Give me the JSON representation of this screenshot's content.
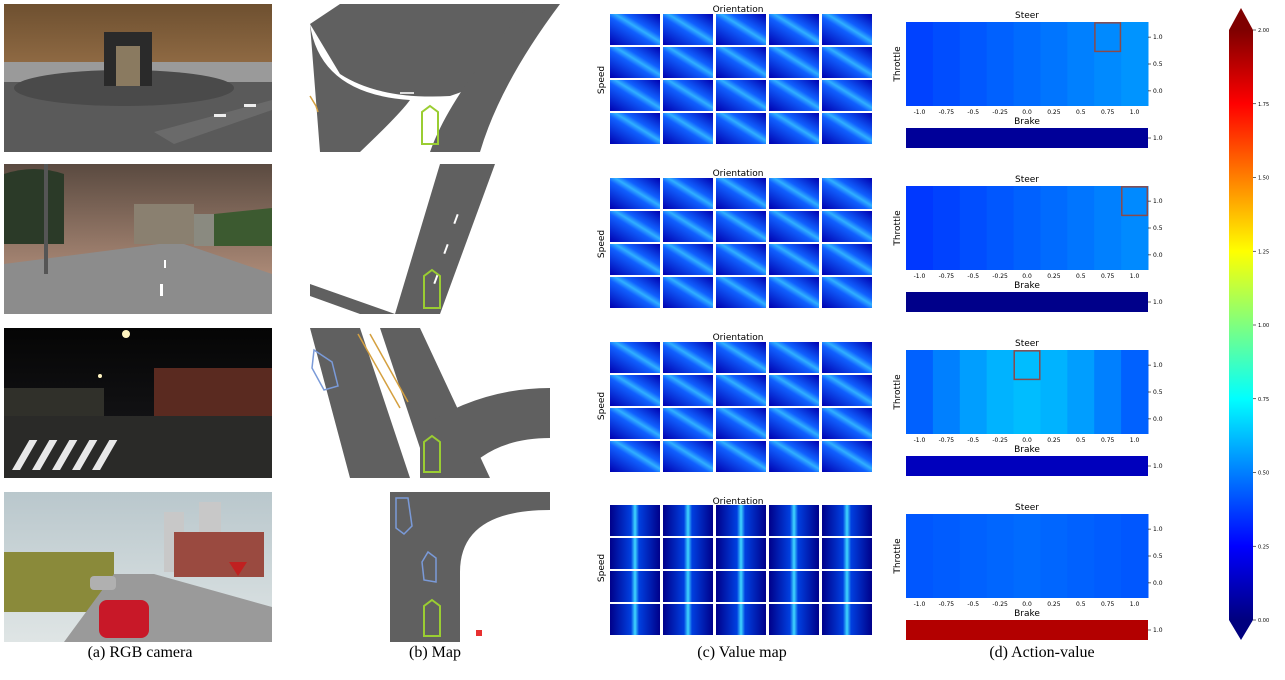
{
  "captions": {
    "rgb": "(a) RGB camera",
    "map": "(b) Map",
    "value_map": "(c) Value map",
    "action_value": "(d) Action-value"
  },
  "value_map_labels": {
    "title": "Orientation",
    "ylabel": "Speed"
  },
  "action_value_labels": {
    "steer": "Steer",
    "throttle": "Throttle",
    "brake": "Brake"
  },
  "colorbar": {
    "ticks": [
      "0.00",
      "0.25",
      "0.50",
      "0.75",
      "1.00",
      "1.25",
      "1.50",
      "1.75",
      "2.00"
    ],
    "colors": [
      "#00007f",
      "#0000ff",
      "#007fff",
      "#00ffff",
      "#7fff7f",
      "#ffff00",
      "#ff7f00",
      "#ff0000",
      "#7f0000"
    ]
  },
  "chart_data": [
    {
      "type": "heatmap",
      "title": "Steer",
      "xlabel": "Steer",
      "ylabel": "Throttle",
      "x_ticks": [
        "-1.0",
        "-0.75",
        "-0.5",
        "-0.25",
        "0.0",
        "0.25",
        "0.5",
        "0.75",
        "1.0"
      ],
      "y_ticks": [
        "1.0",
        "0.5",
        "0.0"
      ],
      "values_by_steer": [
        0.38,
        0.4,
        0.42,
        0.44,
        0.46,
        0.48,
        0.5,
        0.52,
        0.54
      ],
      "selected_steer": "0.75",
      "selected_throttle": "1.0",
      "brake_ticks": [
        "1.0"
      ],
      "brake_value": 0.05
    },
    {
      "type": "heatmap",
      "title": "Steer",
      "xlabel": "Steer",
      "ylabel": "Throttle",
      "x_ticks": [
        "-1.0",
        "-0.75",
        "-0.5",
        "-0.25",
        "0.0",
        "0.25",
        "0.5",
        "0.75",
        "1.0"
      ],
      "y_ticks": [
        "1.0",
        "0.5",
        "0.0"
      ],
      "values_by_steer": [
        0.36,
        0.38,
        0.4,
        0.42,
        0.44,
        0.46,
        0.48,
        0.5,
        0.52
      ],
      "selected_steer": "1.0",
      "selected_throttle": "1.0",
      "brake_ticks": [
        "1.0"
      ],
      "brake_value": 0.02
    },
    {
      "type": "heatmap",
      "title": "Steer",
      "xlabel": "Steer",
      "ylabel": "Throttle",
      "x_ticks": [
        "-1.0",
        "-0.75",
        "-0.5",
        "-0.25",
        "0.0",
        "0.25",
        "0.5",
        "0.75",
        "1.0"
      ],
      "y_ticks": [
        "1.0",
        "0.5",
        "0.0"
      ],
      "values_by_steer": [
        0.44,
        0.5,
        0.56,
        0.6,
        0.62,
        0.6,
        0.56,
        0.5,
        0.44
      ],
      "selected_steer": "0.0",
      "selected_throttle": "1.0",
      "brake_ticks": [
        "1.0"
      ],
      "brake_value": 0.12
    },
    {
      "type": "heatmap",
      "title": "Steer",
      "xlabel": "Steer",
      "ylabel": "Throttle",
      "x_ticks": [
        "-1.0",
        "-0.75",
        "-0.5",
        "-0.25",
        "0.0",
        "0.25",
        "0.5",
        "0.75",
        "1.0"
      ],
      "y_ticks": [
        "1.0",
        "0.5",
        "0.0"
      ],
      "values_by_steer": [
        0.42,
        0.43,
        0.44,
        0.45,
        0.46,
        0.45,
        0.44,
        0.43,
        0.42
      ],
      "selected_steer": "",
      "selected_throttle": "",
      "brake_ticks": [
        "1.0"
      ],
      "brake_value": 1.9
    }
  ]
}
